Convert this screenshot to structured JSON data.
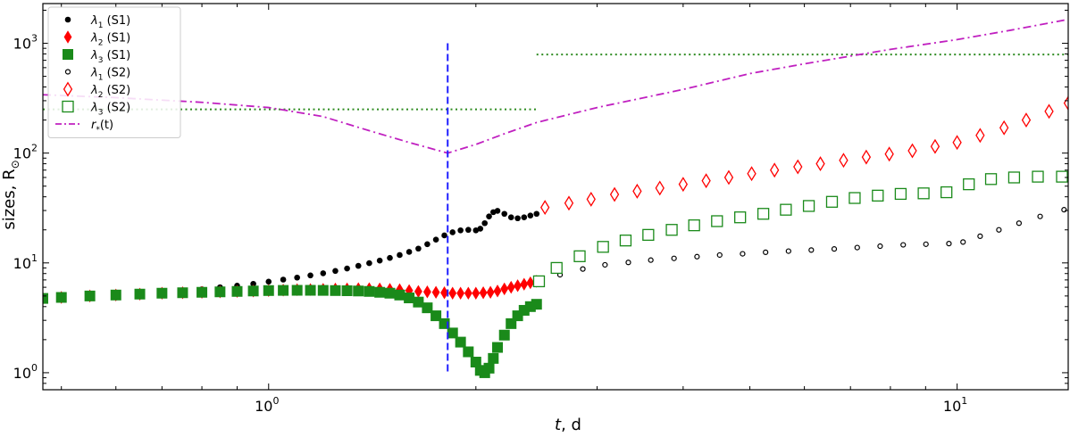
{
  "chart_data": {
    "type": "scatter",
    "title": "",
    "xlabel_italic": "t",
    "xlabel_rest": ", d",
    "ylabel_text": "sizes, R",
    "ylabel_symbol": "⊙",
    "x_scale": "log",
    "y_scale": "log",
    "xlim": [
      0.47,
      14.5
    ],
    "ylim": [
      0.7,
      2300
    ],
    "x_ticks": [
      {
        "value": 1,
        "base": "10",
        "exp": "0"
      },
      {
        "value": 10,
        "base": "10",
        "exp": "1"
      }
    ],
    "y_ticks": [
      {
        "value": 1,
        "base": "10",
        "exp": "0"
      },
      {
        "value": 10,
        "base": "10",
        "exp": "1"
      },
      {
        "value": 100,
        "base": "10",
        "exp": "2"
      },
      {
        "value": 1000,
        "base": "10",
        "exp": "3"
      }
    ],
    "grid": false,
    "legend_position": "top-left",
    "vertical_line": {
      "x": 1.82,
      "y_range": [
        1.0,
        1000
      ],
      "color": "#1f1fff",
      "style": "dashed"
    },
    "hlines": [
      {
        "y": 250,
        "x_range": [
          0.47,
          2.45
        ],
        "color": "#2e8b20",
        "style": "dotted"
      },
      {
        "y": 790,
        "x_range": [
          2.45,
          14.5
        ],
        "color": "#2e8b20",
        "style": "dotted"
      }
    ],
    "series": [
      {
        "name_sym": "λ",
        "name_sub": "1",
        "name_suffix": " (S1)",
        "marker": "dot",
        "color": "#000000",
        "filled": true,
        "points": [
          [
            0.47,
            4.75
          ],
          [
            0.5,
            4.85
          ],
          [
            0.55,
            5.0
          ],
          [
            0.6,
            5.1
          ],
          [
            0.65,
            5.25
          ],
          [
            0.7,
            5.4
          ],
          [
            0.75,
            5.55
          ],
          [
            0.8,
            5.75
          ],
          [
            0.85,
            6.0
          ],
          [
            0.9,
            6.2
          ],
          [
            0.95,
            6.45
          ],
          [
            1.0,
            6.75
          ],
          [
            1.05,
            7.05
          ],
          [
            1.1,
            7.35
          ],
          [
            1.15,
            7.7
          ],
          [
            1.2,
            8.05
          ],
          [
            1.25,
            8.45
          ],
          [
            1.3,
            8.9
          ],
          [
            1.35,
            9.4
          ],
          [
            1.4,
            9.95
          ],
          [
            1.45,
            10.5
          ],
          [
            1.5,
            11.1
          ],
          [
            1.55,
            11.8
          ],
          [
            1.6,
            12.6
          ],
          [
            1.65,
            13.5
          ],
          [
            1.7,
            14.8
          ],
          [
            1.75,
            16.3
          ],
          [
            1.8,
            17.8
          ],
          [
            1.85,
            19.0
          ],
          [
            1.9,
            19.8
          ],
          [
            1.95,
            20.0
          ],
          [
            2.0,
            19.8
          ],
          [
            2.03,
            20.5
          ],
          [
            2.06,
            23.0
          ],
          [
            2.09,
            26.5
          ],
          [
            2.12,
            29.0
          ],
          [
            2.15,
            29.8
          ],
          [
            2.2,
            28.0
          ],
          [
            2.25,
            26.0
          ],
          [
            2.3,
            25.5
          ],
          [
            2.35,
            26.0
          ],
          [
            2.4,
            27.0
          ],
          [
            2.45,
            28.0
          ]
        ]
      },
      {
        "name_sym": "λ",
        "name_sub": "2",
        "name_suffix": " (S1)",
        "marker": "diamond",
        "color": "#ff0000",
        "filled": true,
        "points": [
          [
            0.47,
            4.75
          ],
          [
            0.5,
            4.85
          ],
          [
            0.55,
            5.0
          ],
          [
            0.6,
            5.1
          ],
          [
            0.65,
            5.2
          ],
          [
            0.7,
            5.3
          ],
          [
            0.75,
            5.35
          ],
          [
            0.8,
            5.4
          ],
          [
            0.85,
            5.45
          ],
          [
            0.9,
            5.5
          ],
          [
            0.95,
            5.55
          ],
          [
            1.0,
            5.6
          ],
          [
            1.05,
            5.65
          ],
          [
            1.1,
            5.7
          ],
          [
            1.15,
            5.72
          ],
          [
            1.2,
            5.75
          ],
          [
            1.25,
            5.78
          ],
          [
            1.3,
            5.8
          ],
          [
            1.35,
            5.82
          ],
          [
            1.4,
            5.83
          ],
          [
            1.45,
            5.8
          ],
          [
            1.5,
            5.75
          ],
          [
            1.55,
            5.7
          ],
          [
            1.6,
            5.6
          ],
          [
            1.65,
            5.5
          ],
          [
            1.7,
            5.45
          ],
          [
            1.75,
            5.4
          ],
          [
            1.8,
            5.35
          ],
          [
            1.85,
            5.3
          ],
          [
            1.9,
            5.3
          ],
          [
            1.95,
            5.3
          ],
          [
            2.0,
            5.3
          ],
          [
            2.05,
            5.35
          ],
          [
            2.1,
            5.4
          ],
          [
            2.15,
            5.55
          ],
          [
            2.2,
            5.8
          ],
          [
            2.25,
            6.0
          ],
          [
            2.3,
            6.2
          ],
          [
            2.35,
            6.4
          ],
          [
            2.4,
            6.6
          ],
          [
            2.45,
            6.8
          ]
        ]
      },
      {
        "name_sym": "λ",
        "name_sub": "3",
        "name_suffix": " (S1)",
        "marker": "square",
        "color": "#1a8a1a",
        "filled": true,
        "points": [
          [
            0.47,
            4.75
          ],
          [
            0.5,
            4.85
          ],
          [
            0.55,
            5.0
          ],
          [
            0.6,
            5.1
          ],
          [
            0.65,
            5.2
          ],
          [
            0.7,
            5.3
          ],
          [
            0.75,
            5.35
          ],
          [
            0.8,
            5.4
          ],
          [
            0.85,
            5.45
          ],
          [
            0.9,
            5.5
          ],
          [
            0.95,
            5.55
          ],
          [
            1.0,
            5.6
          ],
          [
            1.05,
            5.62
          ],
          [
            1.1,
            5.63
          ],
          [
            1.15,
            5.63
          ],
          [
            1.2,
            5.62
          ],
          [
            1.25,
            5.6
          ],
          [
            1.3,
            5.58
          ],
          [
            1.35,
            5.55
          ],
          [
            1.4,
            5.5
          ],
          [
            1.45,
            5.4
          ],
          [
            1.5,
            5.3
          ],
          [
            1.55,
            5.1
          ],
          [
            1.6,
            4.8
          ],
          [
            1.65,
            4.4
          ],
          [
            1.7,
            3.9
          ],
          [
            1.75,
            3.3
          ],
          [
            1.8,
            2.8
          ],
          [
            1.85,
            2.3
          ],
          [
            1.9,
            1.9
          ],
          [
            1.95,
            1.55
          ],
          [
            2.0,
            1.25
          ],
          [
            2.03,
            1.05
          ],
          [
            2.06,
            1.0
          ],
          [
            2.09,
            1.1
          ],
          [
            2.12,
            1.35
          ],
          [
            2.15,
            1.7
          ],
          [
            2.2,
            2.2
          ],
          [
            2.25,
            2.8
          ],
          [
            2.3,
            3.3
          ],
          [
            2.35,
            3.7
          ],
          [
            2.4,
            4.0
          ],
          [
            2.45,
            4.2
          ]
        ]
      },
      {
        "name_sym": "λ",
        "name_sub": "1",
        "name_suffix": " (S2)",
        "marker": "dot",
        "color": "#000000",
        "filled": false,
        "points": [
          [
            2.65,
            7.8
          ],
          [
            2.86,
            8.8
          ],
          [
            3.08,
            9.6
          ],
          [
            3.33,
            10.1
          ],
          [
            3.59,
            10.6
          ],
          [
            3.88,
            11.0
          ],
          [
            4.19,
            11.4
          ],
          [
            4.52,
            11.8
          ],
          [
            4.88,
            12.1
          ],
          [
            5.27,
            12.5
          ],
          [
            5.69,
            12.8
          ],
          [
            6.14,
            13.1
          ],
          [
            6.63,
            13.4
          ],
          [
            7.16,
            13.8
          ],
          [
            7.73,
            14.2
          ],
          [
            8.35,
            14.6
          ],
          [
            9.01,
            14.8
          ],
          [
            9.73,
            15.0
          ],
          [
            10.2,
            15.5
          ],
          [
            10.8,
            17.5
          ],
          [
            11.5,
            20.0
          ],
          [
            12.3,
            23.0
          ],
          [
            13.2,
            26.5
          ],
          [
            14.3,
            30.5
          ]
        ]
      },
      {
        "name_sym": "λ",
        "name_sub": "2",
        "name_suffix": " (S2)",
        "marker": "diamond",
        "color": "#ff0000",
        "filled": false,
        "points": [
          [
            2.52,
            32
          ],
          [
            2.73,
            35
          ],
          [
            2.94,
            38
          ],
          [
            3.18,
            42
          ],
          [
            3.43,
            45
          ],
          [
            3.7,
            48
          ],
          [
            4.0,
            52
          ],
          [
            4.32,
            56
          ],
          [
            4.66,
            60
          ],
          [
            5.03,
            65
          ],
          [
            5.43,
            70
          ],
          [
            5.87,
            75
          ],
          [
            6.33,
            80
          ],
          [
            6.84,
            86
          ],
          [
            7.38,
            92
          ],
          [
            7.97,
            98
          ],
          [
            8.61,
            105
          ],
          [
            9.29,
            115
          ],
          [
            10.0,
            125
          ],
          [
            10.8,
            145
          ],
          [
            11.7,
            170
          ],
          [
            12.6,
            200
          ],
          [
            13.6,
            240
          ],
          [
            14.5,
            285
          ]
        ]
      },
      {
        "name_sym": "λ",
        "name_sub": "3",
        "name_suffix": " (S2)",
        "marker": "square",
        "color": "#1a8a1a",
        "filled": false,
        "points": [
          [
            2.47,
            6.8
          ],
          [
            2.62,
            9.0
          ],
          [
            2.83,
            11.5
          ],
          [
            3.06,
            14.0
          ],
          [
            3.3,
            16.0
          ],
          [
            3.56,
            18.0
          ],
          [
            3.85,
            20.0
          ],
          [
            4.15,
            22.0
          ],
          [
            4.48,
            24.0
          ],
          [
            4.84,
            26.0
          ],
          [
            5.23,
            28.0
          ],
          [
            5.64,
            30.5
          ],
          [
            6.09,
            33.0
          ],
          [
            6.58,
            36.0
          ],
          [
            7.1,
            39.0
          ],
          [
            7.67,
            41.0
          ],
          [
            8.28,
            42.5
          ],
          [
            8.94,
            43.0
          ],
          [
            9.65,
            44.0
          ],
          [
            10.4,
            52.0
          ],
          [
            11.2,
            58.0
          ],
          [
            12.1,
            60.0
          ],
          [
            13.1,
            61.0
          ],
          [
            14.2,
            61.0
          ]
        ]
      },
      {
        "name_sym": "r",
        "name_sub": "*",
        "name_suffix": "(t)",
        "marker": "line-dashdot",
        "color": "#c020c0",
        "points": [
          [
            0.47,
            340
          ],
          [
            0.6,
            320
          ],
          [
            0.8,
            290
          ],
          [
            1.0,
            260
          ],
          [
            1.2,
            215
          ],
          [
            1.4,
            160
          ],
          [
            1.6,
            125
          ],
          [
            1.82,
            100
          ],
          [
            2.0,
            120
          ],
          [
            2.2,
            150
          ],
          [
            2.45,
            190
          ],
          [
            3.0,
            260
          ],
          [
            4.0,
            380
          ],
          [
            5.0,
            530
          ],
          [
            6.0,
            650
          ],
          [
            8.0,
            880
          ],
          [
            10.0,
            1080
          ],
          [
            12.0,
            1320
          ],
          [
            14.5,
            1650
          ]
        ]
      }
    ]
  }
}
